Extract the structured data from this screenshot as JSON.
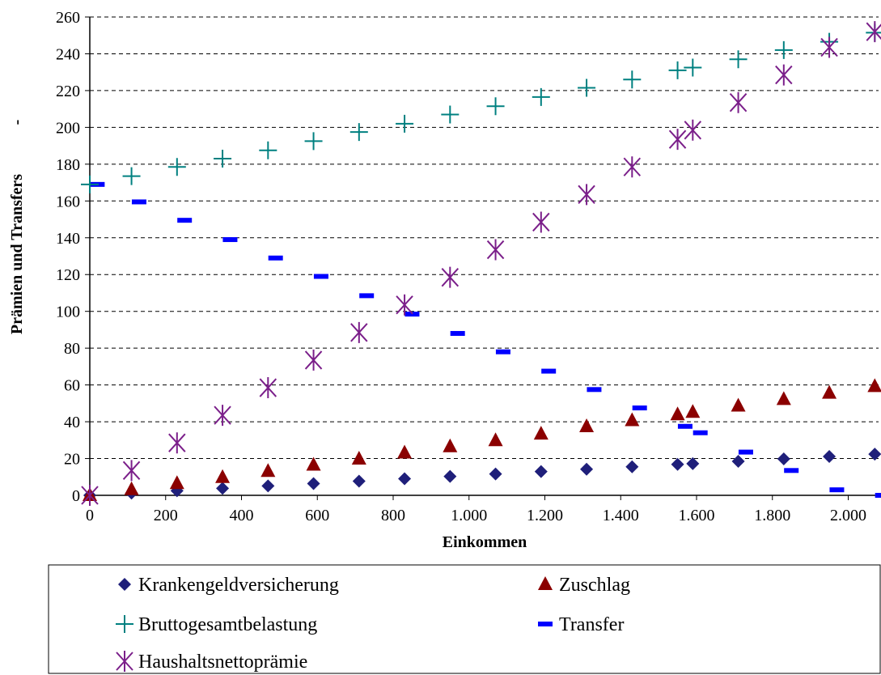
{
  "chart_data": {
    "type": "scatter",
    "xlabel": "Einkommen",
    "ylabel": "Prämien und Transfers",
    "ylabel_suffix": "-",
    "xlim": [
      0,
      2080
    ],
    "ylim": [
      0,
      260
    ],
    "x_ticks": [
      0,
      200,
      400,
      600,
      800,
      1000,
      1200,
      1400,
      1600,
      1800,
      2000
    ],
    "x_tick_labels": [
      "0",
      "200",
      "400",
      "600",
      "800",
      "1.000",
      "1.200",
      "1.400",
      "1.600",
      "1.800",
      "2.000"
    ],
    "y_ticks": [
      0,
      20,
      40,
      60,
      80,
      100,
      120,
      140,
      160,
      180,
      200,
      220,
      240,
      260
    ],
    "y_tick_labels": [
      "0",
      "20",
      "40",
      "60",
      "80",
      "100",
      "120",
      "140",
      "160",
      "180",
      "200",
      "220",
      "240",
      "260"
    ],
    "grid": "horizontal-dashed",
    "legend_position": "bottom",
    "series": [
      {
        "name": "Krankengeldversicherung",
        "marker": "diamond",
        "color": "#1f1f7a",
        "x": [
          0,
          110,
          230,
          350,
          470,
          590,
          710,
          830,
          950,
          1070,
          1190,
          1310,
          1430,
          1550,
          1590,
          1710,
          1830,
          1950,
          2070
        ],
        "y": [
          0,
          1.2,
          2.5,
          3.8,
          5.1,
          6.4,
          7.7,
          9.0,
          10.3,
          11.6,
          12.9,
          14.2,
          15.5,
          16.8,
          17.2,
          18.5,
          19.8,
          21.1,
          22.4
        ]
      },
      {
        "name": "Zuschlag",
        "marker": "triangle",
        "color": "#8b0000",
        "x": [
          0,
          110,
          230,
          350,
          470,
          590,
          710,
          830,
          950,
          1070,
          1190,
          1310,
          1430,
          1550,
          1590,
          1710,
          1830,
          1950,
          2070
        ],
        "y": [
          0,
          3.2,
          6.5,
          9.8,
          13.1,
          16.5,
          19.8,
          23.1,
          26.5,
          29.8,
          33.4,
          37.4,
          40.7,
          43.9,
          45.2,
          48.6,
          52.2,
          55.6,
          59.2
        ]
      },
      {
        "name": "Bruttogesamtbelastung",
        "marker": "plus",
        "color": "#008080",
        "x": [
          0,
          110,
          230,
          350,
          470,
          590,
          710,
          830,
          950,
          1070,
          1190,
          1310,
          1430,
          1550,
          1590,
          1710,
          1830,
          1950,
          2070
        ],
        "y": [
          169,
          173.5,
          178.5,
          183,
          187.5,
          192.5,
          197.5,
          202,
          207,
          211.5,
          216.5,
          221.5,
          226,
          231,
          232.5,
          237,
          242,
          246.5,
          251.5
        ]
      },
      {
        "name": "Transfer",
        "marker": "dash",
        "color": "#0000ff",
        "x": [
          20,
          130,
          250,
          370,
          490,
          610,
          730,
          850,
          970,
          1090,
          1210,
          1330,
          1450,
          1570,
          1610,
          1730,
          1850,
          1970,
          2090
        ],
        "y": [
          169,
          159.5,
          149.5,
          139,
          129,
          119,
          108.5,
          98.5,
          88,
          78,
          67.5,
          57.5,
          47.5,
          37.5,
          34,
          23.5,
          13.5,
          3,
          0
        ]
      },
      {
        "name": "Haushaltsnettoprämie",
        "marker": "star",
        "color": "#7b1f8a",
        "x": [
          0,
          110,
          230,
          350,
          470,
          590,
          710,
          830,
          950,
          1070,
          1190,
          1310,
          1430,
          1550,
          1590,
          1710,
          1830,
          1950,
          2070
        ],
        "y": [
          0,
          13.5,
          28.5,
          43.5,
          58.5,
          73.5,
          88.5,
          103.5,
          118.5,
          133.5,
          148.5,
          163.5,
          178.5,
          193.5,
          198.5,
          213.5,
          228.5,
          243.5,
          252
        ]
      }
    ]
  }
}
